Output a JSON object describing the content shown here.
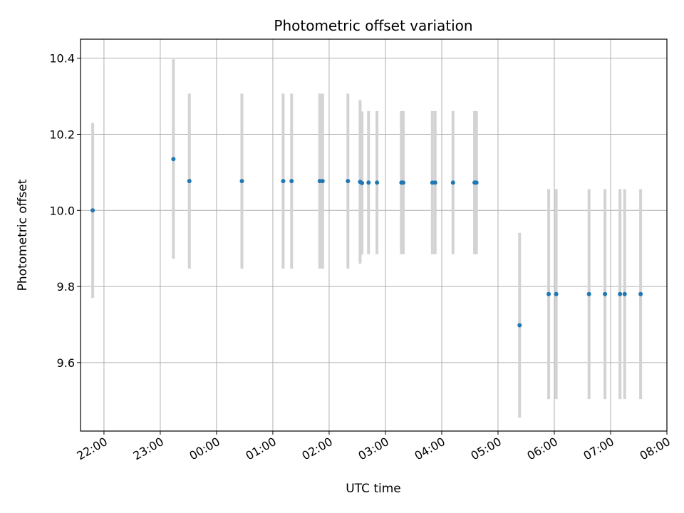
{
  "chart_data": {
    "type": "scatter",
    "title": "Photometric offset variation",
    "xlabel": "UTC time",
    "ylabel": "Photometric offset",
    "x_ticks": [
      "22:00",
      "23:00",
      "00:00",
      "01:00",
      "02:00",
      "03:00",
      "04:00",
      "05:00",
      "06:00",
      "07:00",
      "08:00"
    ],
    "y_ticks": [
      "9.6",
      "9.8",
      "10.0",
      "10.2",
      "10.4"
    ],
    "xlim": [
      "21:35",
      "08:00"
    ],
    "ylim": [
      9.42,
      10.45
    ],
    "grid": true,
    "colors": {
      "point": "#1f77b4",
      "errorbar": "#d3d3d3",
      "grid": "#b0b0b0"
    },
    "series": [
      {
        "points": [
          {
            "x": "21:48",
            "y": 10.0,
            "yerr": 0.23
          },
          {
            "x": "23:14",
            "y": 10.135,
            "yerr": 0.262
          },
          {
            "x": "23:31",
            "y": 10.077,
            "yerr": 0.23
          },
          {
            "x": "00:27",
            "y": 10.077,
            "yerr": 0.23
          },
          {
            "x": "01:11",
            "y": 10.077,
            "yerr": 0.23
          },
          {
            "x": "01:20",
            "y": 10.077,
            "yerr": 0.23
          },
          {
            "x": "01:50",
            "y": 10.077,
            "yerr": 0.23
          },
          {
            "x": "01:53",
            "y": 10.077,
            "yerr": 0.23
          },
          {
            "x": "02:20",
            "y": 10.077,
            "yerr": 0.23
          },
          {
            "x": "02:33",
            "y": 10.075,
            "yerr": 0.215
          },
          {
            "x": "02:35",
            "y": 10.072,
            "yerr": 0.188
          },
          {
            "x": "02:42",
            "y": 10.073,
            "yerr": 0.188
          },
          {
            "x": "02:51",
            "y": 10.073,
            "yerr": 0.188
          },
          {
            "x": "03:17",
            "y": 10.073,
            "yerr": 0.188
          },
          {
            "x": "03:19",
            "y": 10.073,
            "yerr": 0.188
          },
          {
            "x": "03:50",
            "y": 10.073,
            "yerr": 0.188
          },
          {
            "x": "03:53",
            "y": 10.073,
            "yerr": 0.188
          },
          {
            "x": "04:12",
            "y": 10.073,
            "yerr": 0.188
          },
          {
            "x": "04:35",
            "y": 10.073,
            "yerr": 0.188
          },
          {
            "x": "04:37",
            "y": 10.073,
            "yerr": 0.188
          },
          {
            "x": "05:23",
            "y": 9.698,
            "yerr": 0.243
          },
          {
            "x": "05:54",
            "y": 9.78,
            "yerr": 0.276
          },
          {
            "x": "06:02",
            "y": 9.78,
            "yerr": 0.276
          },
          {
            "x": "06:37",
            "y": 9.78,
            "yerr": 0.276
          },
          {
            "x": "06:54",
            "y": 9.78,
            "yerr": 0.276
          },
          {
            "x": "07:10",
            "y": 9.78,
            "yerr": 0.276
          },
          {
            "x": "07:15",
            "y": 9.78,
            "yerr": 0.276
          },
          {
            "x": "07:32",
            "y": 9.78,
            "yerr": 0.276
          }
        ]
      }
    ]
  }
}
